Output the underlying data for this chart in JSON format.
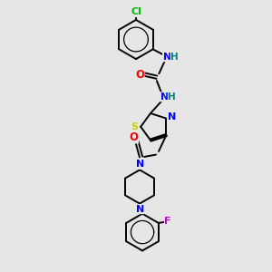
{
  "bg_color": "#e6e6e6",
  "bond_color": "#000000",
  "bond_width": 1.4,
  "atom_colors": {
    "N": "#0000ff",
    "O": "#ff0000",
    "S": "#cccc00",
    "Cl": "#00bb00",
    "F": "#cc00cc",
    "H": "#008080"
  },
  "font_size": 7.5
}
